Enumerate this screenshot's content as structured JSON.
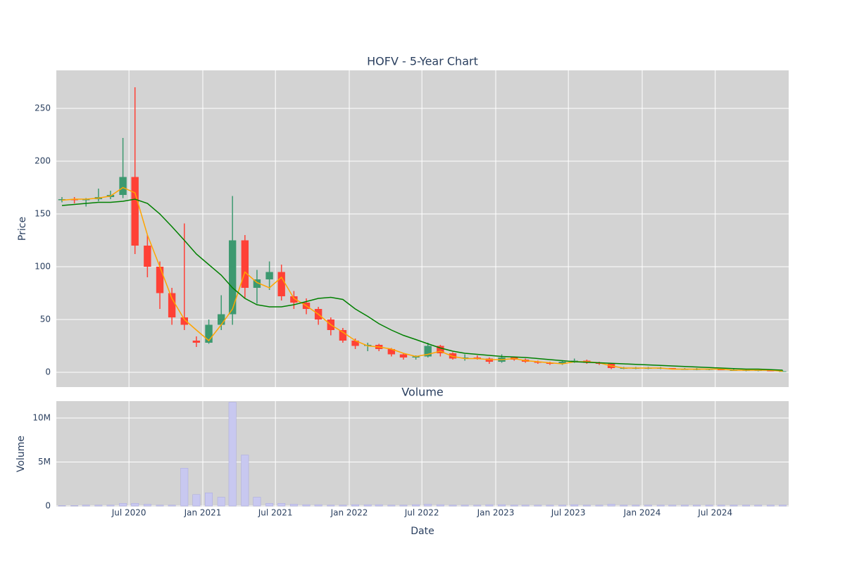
{
  "chart_data": [
    {
      "type": "candlestick",
      "title": "HOFV - 5-Year Chart",
      "y_label": "Price",
      "x": [
        "2020-01",
        "2020-02",
        "2020-03",
        "2020-04",
        "2020-05",
        "2020-06",
        "2020-07",
        "2020-08",
        "2020-09",
        "2020-10",
        "2020-11",
        "2020-12",
        "2021-01",
        "2021-02",
        "2021-03",
        "2021-04",
        "2021-05",
        "2021-06",
        "2021-07",
        "2021-08",
        "2021-09",
        "2021-10",
        "2021-11",
        "2021-12",
        "2022-01",
        "2022-02",
        "2022-03",
        "2022-04",
        "2022-05",
        "2022-06",
        "2022-07",
        "2022-08",
        "2022-09",
        "2022-10",
        "2022-11",
        "2022-12",
        "2023-01",
        "2023-02",
        "2023-03",
        "2023-04",
        "2023-05",
        "2023-06",
        "2023-07",
        "2023-08",
        "2023-09",
        "2023-10",
        "2023-11",
        "2023-12",
        "2024-01",
        "2024-02",
        "2024-03",
        "2024-04",
        "2024-05",
        "2024-06",
        "2024-07",
        "2024-08",
        "2024-09",
        "2024-10",
        "2024-11",
        "2024-12"
      ],
      "open": [
        163,
        164,
        163,
        164,
        166,
        168,
        185,
        120,
        100,
        75,
        52,
        30,
        28,
        45,
        55,
        125,
        80,
        88,
        95,
        72,
        66,
        60,
        50,
        40,
        30,
        25,
        26,
        22,
        17,
        14,
        15,
        25,
        18,
        13,
        14,
        13,
        10,
        14,
        12,
        10,
        9,
        8,
        10,
        11,
        9,
        8,
        4,
        4,
        4,
        4,
        4,
        3,
        3,
        3,
        3,
        2,
        2,
        2,
        2,
        1
      ],
      "high": [
        166,
        166,
        165,
        174,
        172,
        222,
        270,
        130,
        105,
        80,
        141,
        34,
        50,
        73,
        167,
        130,
        97,
        105,
        102,
        77,
        70,
        62,
        52,
        42,
        32,
        28,
        27,
        23,
        18,
        16,
        28,
        26,
        19,
        17,
        16,
        14,
        17,
        15,
        13,
        11,
        10,
        11,
        13,
        12,
        10,
        8,
        5,
        5,
        5,
        5,
        4,
        4,
        4,
        3,
        3,
        3,
        3,
        2,
        2,
        2
      ],
      "low": [
        161,
        160,
        157,
        162,
        164,
        165,
        112,
        90,
        60,
        45,
        40,
        24,
        27,
        40,
        45,
        70,
        65,
        78,
        68,
        60,
        55,
        45,
        35,
        28,
        22,
        20,
        20,
        15,
        12,
        12,
        14,
        15,
        12,
        11,
        12,
        8,
        9,
        11,
        9,
        8,
        7,
        7,
        9,
        8,
        7,
        3,
        3,
        3,
        3,
        3,
        3,
        3,
        2,
        2,
        2,
        2,
        1,
        1,
        1,
        1
      ],
      "close": [
        164,
        163,
        164,
        166,
        168,
        185,
        120,
        100,
        75,
        52,
        45,
        28,
        45,
        55,
        125,
        80,
        88,
        95,
        72,
        66,
        60,
        50,
        40,
        30,
        25,
        26,
        22,
        17,
        14,
        15,
        25,
        18,
        13,
        14,
        13,
        10,
        14,
        12,
        10,
        9,
        8,
        10,
        11,
        9,
        8,
        4,
        4,
        4,
        4,
        4,
        3,
        3,
        3,
        3,
        2,
        2,
        2,
        2,
        1,
        1
      ],
      "increasing_color": "#3d9970",
      "decreasing_color": "#ff4136",
      "series": [
        {
          "color": "orange",
          "values": [
            163,
            164,
            164,
            165,
            167,
            175,
            170,
            130,
            100,
            70,
            50,
            40,
            30,
            45,
            60,
            95,
            85,
            80,
            90,
            70,
            63,
            55,
            45,
            38,
            30,
            25,
            24,
            22,
            18,
            15,
            17,
            20,
            15,
            13,
            13,
            12,
            12,
            13,
            11,
            10,
            9,
            8,
            10,
            10,
            9,
            6,
            4,
            4,
            4,
            4,
            3,
            3,
            3,
            3,
            3,
            2,
            2,
            2,
            2,
            1
          ]
        },
        {
          "color": "green",
          "values": [
            158,
            159,
            160,
            161,
            161,
            162,
            164,
            160,
            150,
            138,
            125,
            112,
            102,
            92,
            80,
            70,
            64,
            62,
            62,
            64,
            67,
            70,
            71,
            69,
            60,
            53,
            46,
            40,
            35,
            31,
            27,
            23,
            20,
            18,
            17,
            16,
            15,
            14.5,
            14,
            13,
            12,
            11,
            10,
            9.5,
            9,
            8.5,
            8,
            7.5,
            7,
            6.5,
            6,
            5.5,
            5,
            4.5,
            4,
            3.5,
            3,
            3,
            2.5,
            2
          ]
        }
      ],
      "xlim": [
        "2020-01-02",
        "2024-12-31"
      ],
      "xticks": [
        "2020-07-01",
        "2021-01-01",
        "2021-07-01",
        "2022-01-01",
        "2022-07-01",
        "2023-01-01",
        "2023-07-01",
        "2024-01-01",
        "2024-07-01"
      ],
      "ylim": [
        -14,
        286
      ],
      "yticks": [
        0,
        50,
        100,
        150,
        200,
        250
      ],
      "grid": true
    },
    {
      "type": "bar",
      "title": "Volume",
      "x_label": "Date",
      "y_label": "Volume",
      "x": [
        "2020-01",
        "2020-02",
        "2020-03",
        "2020-04",
        "2020-05",
        "2020-06",
        "2020-07",
        "2020-08",
        "2020-09",
        "2020-10",
        "2020-11",
        "2020-12",
        "2021-01",
        "2021-02",
        "2021-03",
        "2021-04",
        "2021-05",
        "2021-06",
        "2021-07",
        "2021-08",
        "2021-09",
        "2021-10",
        "2021-11",
        "2021-12",
        "2022-01",
        "2022-02",
        "2022-03",
        "2022-04",
        "2022-05",
        "2022-06",
        "2022-07",
        "2022-08",
        "2022-09",
        "2022-10",
        "2022-11",
        "2022-12",
        "2023-01",
        "2023-02",
        "2023-03",
        "2023-04",
        "2023-05",
        "2023-06",
        "2023-07",
        "2023-08",
        "2023-09",
        "2023-10",
        "2023-11",
        "2023-12",
        "2024-01",
        "2024-02",
        "2024-03",
        "2024-04",
        "2024-05",
        "2024-06",
        "2024-07",
        "2024-08",
        "2024-09",
        "2024-10",
        "2024-11",
        "2024-12"
      ],
      "values": [
        50000,
        50000,
        100000,
        100000,
        100000,
        300000,
        300000,
        200000,
        100000,
        100000,
        4300000,
        1300000,
        1500000,
        1000000,
        11800000,
        5800000,
        1000000,
        300000,
        300000,
        200000,
        150000,
        150000,
        100000,
        100000,
        150000,
        150000,
        150000,
        100000,
        100000,
        150000,
        200000,
        150000,
        100000,
        100000,
        100000,
        150000,
        150000,
        100000,
        100000,
        100000,
        100000,
        100000,
        150000,
        100000,
        100000,
        200000,
        100000,
        100000,
        100000,
        100000,
        100000,
        100000,
        100000,
        100000,
        100000,
        100000,
        100000,
        100000,
        100000,
        100000
      ],
      "color": "#c8c8f0",
      "xlim": [
        "2020-01-02",
        "2024-12-31"
      ],
      "xticks": [
        {
          "value": "2020-07-01",
          "label": "Jul 2020"
        },
        {
          "value": "2021-01-01",
          "label": "Jan 2021"
        },
        {
          "value": "2021-07-01",
          "label": "Jul 2021"
        },
        {
          "value": "2022-01-01",
          "label": "Jan 2022"
        },
        {
          "value": "2022-07-01",
          "label": "Jul 2022"
        },
        {
          "value": "2023-01-01",
          "label": "Jan 2023"
        },
        {
          "value": "2023-07-01",
          "label": "Jul 2023"
        },
        {
          "value": "2024-01-01",
          "label": "Jan 2024"
        },
        {
          "value": "2024-07-01",
          "label": "Jul 2024"
        }
      ],
      "ylim": [
        -80000,
        11920000
      ],
      "yticks": [
        0,
        {
          "value": 5000000,
          "label": "5M"
        },
        {
          "value": 10000000,
          "label": "10M"
        }
      ],
      "grid": true
    }
  ]
}
